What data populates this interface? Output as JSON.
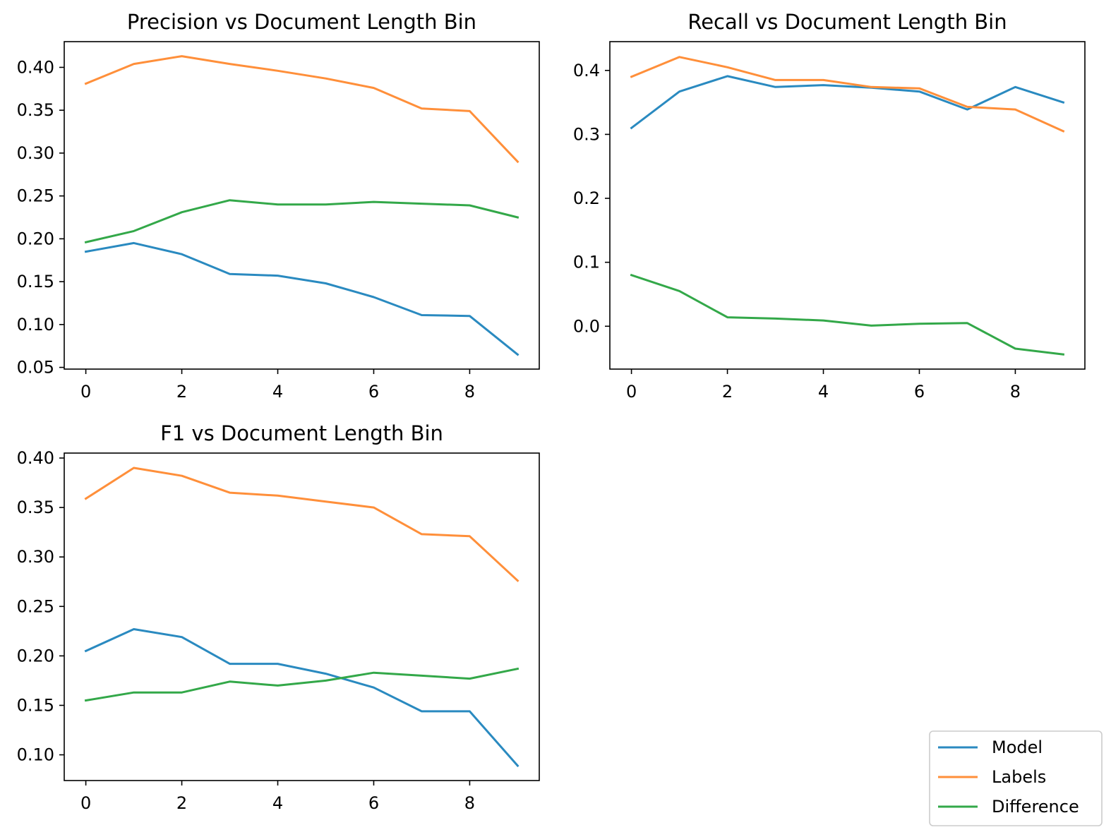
{
  "chart_data": [
    {
      "type": "line",
      "title": "Precision vs Document Length Bin",
      "x": [
        0,
        1,
        2,
        3,
        4,
        5,
        6,
        7,
        8,
        9
      ],
      "xlim": [
        -0.45,
        9.45
      ],
      "ylim": [
        0.048,
        0.43
      ],
      "xticks": [
        0,
        2,
        4,
        6,
        8
      ],
      "xtick_labels": [
        "0",
        "2",
        "4",
        "6",
        "8"
      ],
      "yticks": [
        0.05,
        0.1,
        0.15,
        0.2,
        0.25,
        0.3,
        0.35,
        0.4
      ],
      "ytick_labels": [
        "0.05",
        "0.10",
        "0.15",
        "0.20",
        "0.25",
        "0.30",
        "0.35",
        "0.40"
      ],
      "series": [
        {
          "name": "Model",
          "color": "#2a8ac0",
          "values": [
            0.185,
            0.195,
            0.182,
            0.159,
            0.157,
            0.148,
            0.132,
            0.111,
            0.11,
            0.065
          ]
        },
        {
          "name": "Labels",
          "color": "#ff8f3a",
          "values": [
            0.381,
            0.404,
            0.413,
            0.404,
            0.396,
            0.387,
            0.376,
            0.352,
            0.349,
            0.29
          ]
        },
        {
          "name": "Difference",
          "color": "#33a849",
          "values": [
            0.196,
            0.209,
            0.231,
            0.245,
            0.24,
            0.24,
            0.243,
            0.241,
            0.239,
            0.225
          ]
        }
      ]
    },
    {
      "type": "line",
      "title": "Recall vs Document Length Bin",
      "x": [
        0,
        1,
        2,
        3,
        4,
        5,
        6,
        7,
        8,
        9
      ],
      "xlim": [
        -0.45,
        9.45
      ],
      "ylim": [
        -0.067,
        0.445
      ],
      "xticks": [
        0,
        2,
        4,
        6,
        8
      ],
      "xtick_labels": [
        "0",
        "2",
        "4",
        "6",
        "8"
      ],
      "yticks": [
        0.0,
        0.1,
        0.2,
        0.3,
        0.4
      ],
      "ytick_labels": [
        "0.0",
        "0.1",
        "0.2",
        "0.3",
        "0.4"
      ],
      "series": [
        {
          "name": "Model",
          "color": "#2a8ac0",
          "values": [
            0.31,
            0.367,
            0.391,
            0.374,
            0.377,
            0.373,
            0.367,
            0.339,
            0.374,
            0.35
          ]
        },
        {
          "name": "Labels",
          "color": "#ff8f3a",
          "values": [
            0.39,
            0.421,
            0.405,
            0.385,
            0.385,
            0.374,
            0.372,
            0.343,
            0.339,
            0.305
          ]
        },
        {
          "name": "Difference",
          "color": "#33a849",
          "values": [
            0.08,
            0.055,
            0.014,
            0.012,
            0.009,
            0.001,
            0.004,
            0.005,
            -0.035,
            -0.044
          ]
        }
      ]
    },
    {
      "type": "line",
      "title": "F1 vs Document Length Bin",
      "x": [
        0,
        1,
        2,
        3,
        4,
        5,
        6,
        7,
        8,
        9
      ],
      "xlim": [
        -0.45,
        9.45
      ],
      "ylim": [
        0.074,
        0.405
      ],
      "xticks": [
        0,
        2,
        4,
        6,
        8
      ],
      "xtick_labels": [
        "0",
        "2",
        "4",
        "6",
        "8"
      ],
      "yticks": [
        0.1,
        0.15,
        0.2,
        0.25,
        0.3,
        0.35,
        0.4
      ],
      "ytick_labels": [
        "0.10",
        "0.15",
        "0.20",
        "0.25",
        "0.30",
        "0.35",
        "0.40"
      ],
      "series": [
        {
          "name": "Model",
          "color": "#2a8ac0",
          "values": [
            0.205,
            0.227,
            0.219,
            0.192,
            0.192,
            0.182,
            0.168,
            0.144,
            0.144,
            0.089
          ]
        },
        {
          "name": "Labels",
          "color": "#ff8f3a",
          "values": [
            0.359,
            0.39,
            0.382,
            0.365,
            0.362,
            0.356,
            0.35,
            0.323,
            0.321,
            0.276
          ]
        },
        {
          "name": "Difference",
          "color": "#33a849",
          "values": [
            0.155,
            0.163,
            0.163,
            0.174,
            0.17,
            0.175,
            0.183,
            0.18,
            0.177,
            0.187
          ]
        }
      ]
    }
  ],
  "legend": {
    "placement": "lower-right",
    "entries": [
      {
        "label": "Model",
        "color": "#2a8ac0"
      },
      {
        "label": "Labels",
        "color": "#ff8f3a"
      },
      {
        "label": "Difference",
        "color": "#33a849"
      }
    ]
  }
}
